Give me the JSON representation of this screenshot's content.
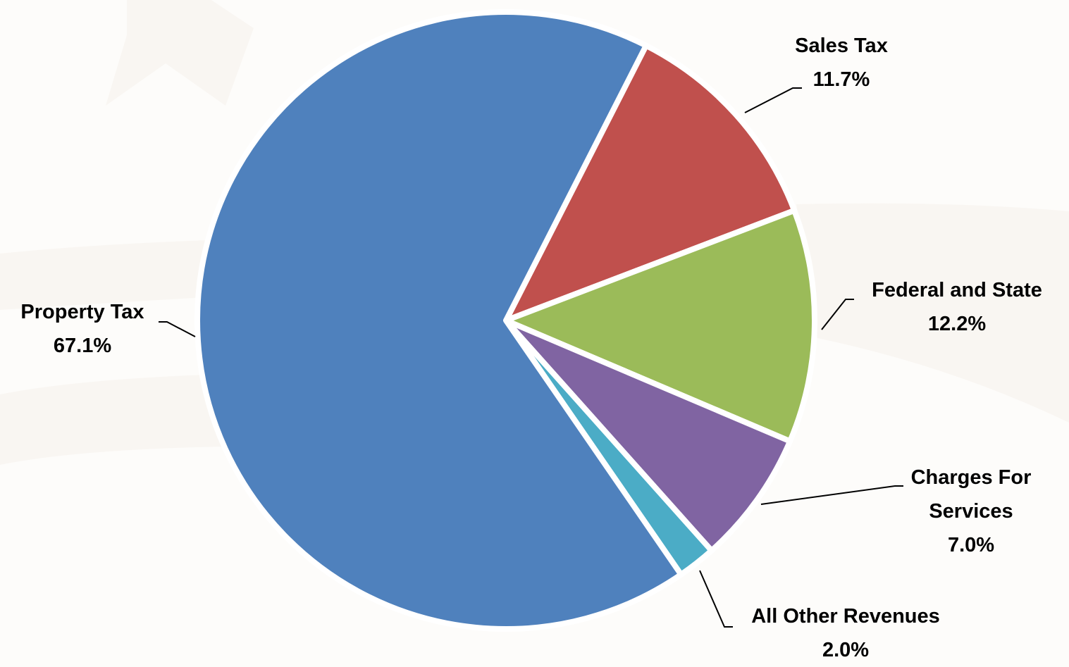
{
  "chart_data": {
    "type": "pie",
    "categories": [
      "Sales Tax",
      "Federal and State",
      "Charges For Services",
      "All Other Revenues",
      "Property Tax"
    ],
    "values": [
      11.7,
      12.2,
      7.0,
      2.0,
      67.1
    ],
    "value_labels": [
      "11.7%",
      "12.2%",
      "7.0%",
      "2.0%",
      "67.1%"
    ],
    "colors": [
      "#c0504d",
      "#9bbb59",
      "#8064a2",
      "#4bacc6",
      "#4f81bd"
    ]
  }
}
